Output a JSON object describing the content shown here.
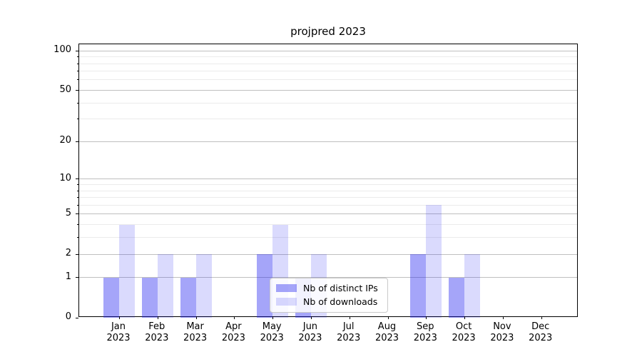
{
  "chart_data": {
    "type": "bar",
    "title": "projpred 2023",
    "categories": [
      "Jan",
      "Feb",
      "Mar",
      "Apr",
      "May",
      "Jun",
      "Jul",
      "Aug",
      "Sep",
      "Oct",
      "Nov",
      "Dec"
    ],
    "category_year": "2023",
    "series": [
      {
        "name": "Nb of distinct IPs",
        "values": [
          1,
          1,
          1,
          0,
          2,
          1,
          0,
          0,
          2,
          1,
          0,
          0
        ]
      },
      {
        "name": "Nb of downloads",
        "values": [
          4,
          2,
          2,
          0,
          4,
          2,
          0,
          0,
          6,
          2,
          0,
          0
        ]
      }
    ],
    "scale": "log1p",
    "ylim": [
      0,
      112
    ],
    "y_ticks_major": [
      0,
      1,
      2,
      5,
      10,
      20,
      50,
      100
    ],
    "y_ticks_minor": [
      3,
      4,
      6,
      7,
      8,
      9,
      30,
      40,
      60,
      70,
      80,
      90
    ],
    "grid": "both",
    "legend_position": "lower-center",
    "xlabel": "",
    "ylabel": ""
  },
  "colors": {
    "ips_bar": "rgba(30,30,240,0.40)",
    "downloads_bar": "rgba(30,30,240,0.165)",
    "grid_major": "#bfbfbf",
    "grid_minor": "#ebebeb",
    "frame": "#000000",
    "background": "#ffffff",
    "text": "#000000"
  }
}
